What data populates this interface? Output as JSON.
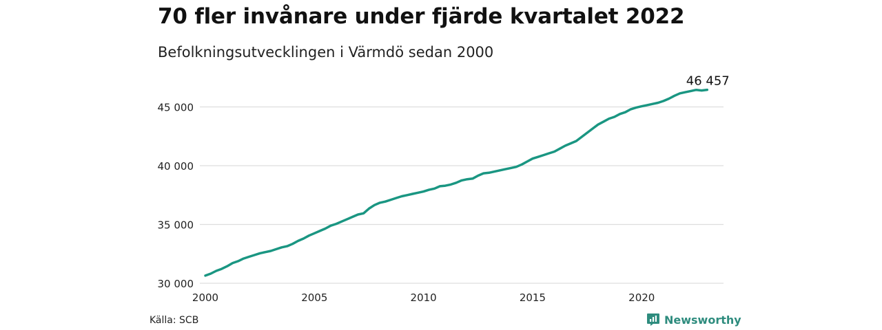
{
  "header": {
    "title": "70 fler invånare under fjärde kvartalet 2022",
    "subtitle": "Befolkningsutvecklingen i Värmdö sedan 2000"
  },
  "footer": {
    "source": "Källa: SCB",
    "brand": "Newsworthy",
    "brand_icon": "newsworthy-logo-icon"
  },
  "colors": {
    "line": "#1a9682",
    "grid": "#dddddd",
    "brand": "#2e8c7e"
  },
  "chart_data": {
    "type": "line",
    "title": "70 fler invånare under fjärde kvartalet 2022",
    "subtitle": "Befolkningsutvecklingen i Värmdö sedan 2000",
    "xlabel": "",
    "ylabel": "",
    "xlim": [
      2000,
      2023.75
    ],
    "ylim": [
      30000,
      47000
    ],
    "grid": true,
    "x_ticks": [
      2000,
      2005,
      2010,
      2015,
      2020
    ],
    "x_tick_labels": [
      "2000",
      "2005",
      "2010",
      "2015",
      "2020"
    ],
    "y_ticks": [
      30000,
      35000,
      40000,
      45000
    ],
    "y_tick_labels": [
      "30 000",
      "35 000",
      "40 000",
      "45 000"
    ],
    "end_label": "46 457",
    "series": [
      {
        "x": [
          2000.0,
          2000.25,
          2000.5,
          2000.75,
          2001.0,
          2001.25,
          2001.5,
          2001.75,
          2002.0,
          2002.25,
          2002.5,
          2002.75,
          2003.0,
          2003.25,
          2003.5,
          2003.75,
          2004.0,
          2004.25,
          2004.5,
          2004.75,
          2005.0,
          2005.25,
          2005.5,
          2005.75,
          2006.0,
          2006.25,
          2006.5,
          2006.75,
          2007.0,
          2007.25,
          2007.5,
          2007.75,
          2008.0,
          2008.25,
          2008.5,
          2008.75,
          2009.0,
          2009.25,
          2009.5,
          2009.75,
          2010.0,
          2010.25,
          2010.5,
          2010.75,
          2011.0,
          2011.25,
          2011.5,
          2011.75,
          2012.0,
          2012.25,
          2012.5,
          2012.75,
          2013.0,
          2013.25,
          2013.5,
          2013.75,
          2014.0,
          2014.25,
          2014.5,
          2014.75,
          2015.0,
          2015.25,
          2015.5,
          2015.75,
          2016.0,
          2016.25,
          2016.5,
          2016.75,
          2017.0,
          2017.25,
          2017.5,
          2017.75,
          2018.0,
          2018.25,
          2018.5,
          2018.75,
          2019.0,
          2019.25,
          2019.5,
          2019.75,
          2020.0,
          2020.25,
          2020.5,
          2020.75,
          2021.0,
          2021.25,
          2021.5,
          2021.75,
          2022.0,
          2022.25,
          2022.5,
          2022.75,
          2023.0
        ],
        "values": [
          30650,
          30820,
          31050,
          31220,
          31450,
          31720,
          31880,
          32100,
          32250,
          32400,
          32550,
          32650,
          32750,
          32900,
          33050,
          33150,
          33350,
          33600,
          33800,
          34050,
          34250,
          34450,
          34650,
          34900,
          35050,
          35250,
          35450,
          35650,
          35850,
          35950,
          36350,
          36650,
          36850,
          36950,
          37100,
          37250,
          37400,
          37500,
          37600,
          37700,
          37800,
          37950,
          38050,
          38250,
          38300,
          38400,
          38550,
          38750,
          38850,
          38900,
          39150,
          39350,
          39400,
          39500,
          39600,
          39700,
          39800,
          39900,
          40100,
          40350,
          40600,
          40750,
          40900,
          41050,
          41200,
          41450,
          41700,
          41900,
          42100,
          42450,
          42800,
          43150,
          43500,
          43750,
          44000,
          44150,
          44400,
          44550,
          44800,
          44950,
          45050,
          45150,
          45250,
          45350,
          45500,
          45700,
          45950,
          46150,
          46250,
          46350,
          46450,
          46400,
          46457
        ]
      }
    ]
  }
}
